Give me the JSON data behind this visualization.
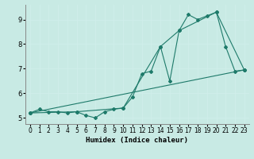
{
  "xlabel": "Humidex (Indice chaleur)",
  "background_color": "#c8eae4",
  "grid_color": "#e8f8f5",
  "line_color": "#1e7a6a",
  "xlim": [
    -0.5,
    23.5
  ],
  "ylim": [
    4.75,
    9.6
  ],
  "xticks": [
    0,
    1,
    2,
    3,
    4,
    5,
    6,
    7,
    8,
    9,
    10,
    11,
    12,
    13,
    14,
    15,
    16,
    17,
    18,
    19,
    20,
    21,
    22,
    23
  ],
  "yticks": [
    5,
    6,
    7,
    8,
    9
  ],
  "series1_x": [
    0,
    1,
    2,
    3,
    4,
    5,
    6,
    7,
    8,
    9,
    10,
    11,
    12,
    13,
    14,
    15,
    16,
    17,
    18,
    19,
    20,
    21,
    22,
    23
  ],
  "series1_y": [
    5.2,
    5.35,
    5.25,
    5.25,
    5.2,
    5.25,
    5.1,
    5.0,
    5.25,
    5.35,
    5.4,
    5.85,
    6.8,
    6.9,
    7.9,
    6.5,
    8.55,
    9.2,
    9.0,
    9.15,
    9.3,
    7.9,
    6.9,
    6.95
  ],
  "series2_x": [
    0,
    5,
    10,
    14,
    16,
    20,
    23
  ],
  "series2_y": [
    5.2,
    5.25,
    5.4,
    7.9,
    8.55,
    9.3,
    6.95
  ],
  "series3_x": [
    0,
    23
  ],
  "series3_y": [
    5.2,
    6.95
  ]
}
